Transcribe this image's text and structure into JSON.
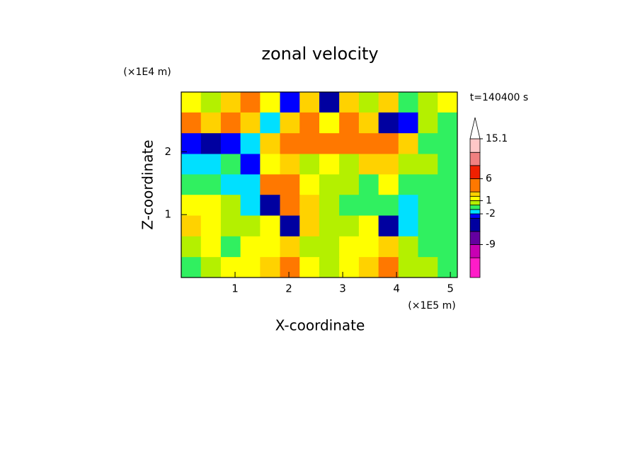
{
  "chart_data": {
    "type": "contour",
    "title": "zonal velocity",
    "x_label": "X-coordinate",
    "y_label": "Z-coordinate",
    "x_unit": "(×1E5 m)",
    "y_unit": "(×1E4 m)",
    "time_label": "t=140400 s",
    "xlim": [
      0,
      5.13
    ],
    "ylim": [
      0,
      2.95
    ],
    "xticks": [
      1,
      2,
      3,
      4,
      5
    ],
    "yticks": [
      1,
      2
    ],
    "x": [
      0.18,
      0.55,
      0.92,
      1.28,
      1.65,
      2.02,
      2.38,
      2.75,
      3.12,
      3.48,
      3.85,
      4.22,
      4.58,
      4.95
    ],
    "y": [
      2.79,
      2.46,
      2.13,
      1.8,
      1.48,
      1.15,
      0.82,
      0.49,
      0.16
    ],
    "z": [
      [
        1.5,
        0.5,
        2,
        4,
        1,
        -2.5,
        2,
        -4,
        2,
        0.5,
        2.5,
        -1,
        0.5,
        1.5
      ],
      [
        4,
        2,
        4,
        2,
        -1.5,
        2,
        4,
        1,
        3,
        2,
        -4,
        -3,
        0.5,
        -0.5
      ],
      [
        -2.5,
        -5,
        -3,
        -1.5,
        2,
        4,
        5,
        3,
        4,
        5,
        4,
        2,
        -1,
        -0.5
      ],
      [
        -1.5,
        -1.5,
        -1,
        -2.5,
        1,
        2,
        0.5,
        1,
        0.5,
        2,
        2,
        0.5,
        0.5,
        -1
      ],
      [
        -0.5,
        -1,
        -2,
        -1.5,
        3,
        4,
        1,
        0.5,
        0,
        -0.5,
        1,
        -0.5,
        -0.5,
        -0.5
      ],
      [
        1.5,
        1.5,
        0.5,
        -1.5,
        -6,
        5,
        2,
        0.5,
        -0.5,
        -0.5,
        -0.5,
        -1.5,
        -0.5,
        -0.5
      ],
      [
        2,
        1.5,
        0.5,
        0.5,
        1,
        -5,
        2,
        0.5,
        0.5,
        1,
        -6,
        -1.5,
        -0.5,
        -0.5
      ],
      [
        0.5,
        1.5,
        -0.5,
        1.5,
        1,
        2,
        0.5,
        0.5,
        1.5,
        1,
        2,
        0.5,
        -0.5,
        -0.5
      ],
      [
        -0.5,
        0.5,
        1,
        1.5,
        2,
        3,
        1,
        0.5,
        1,
        2,
        3,
        0.5,
        0.5,
        -0.5
      ]
    ],
    "levels": [
      -16.5,
      -12,
      -9,
      -6,
      -3,
      -2,
      -1,
      0,
      1,
      2,
      3,
      6,
      9,
      12,
      15.1
    ],
    "colors": [
      "#ff1cc8",
      "#c800b4",
      "#6400a0",
      "#0000a0",
      "#0000ff",
      "#00e0ff",
      "#30f060",
      "#b4f000",
      "#ffff00",
      "#ffd200",
      "#ff7800",
      "#f02000",
      "#f08080",
      "#ffc8c8"
    ],
    "cticks": [
      -9,
      -2,
      1,
      6,
      15.1
    ]
  }
}
